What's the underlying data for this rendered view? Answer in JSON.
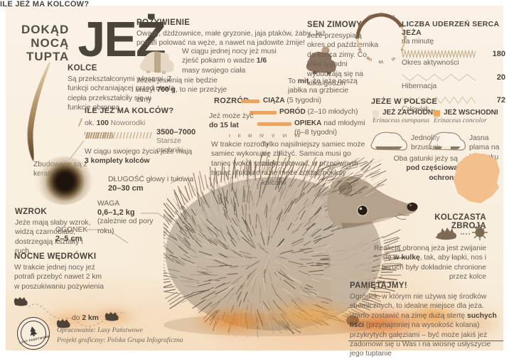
{
  "title": {
    "pre": [
      "DOKĄD",
      "NOCĄ",
      "TUPTA"
    ],
    "main": "JEŻ"
  },
  "kolce": {
    "header": "KOLCE",
    "body": "Są przekształconymi włosami. Z funkcji ochraniającej przed utratą ciepła przekształciły się w funkcję obronną",
    "note": "Zbudowane są z keratyny"
  },
  "pozywienie": {
    "header": "POŻYWIENIE",
    "body": "Owady, dżdżownice, małe gryzonie, jaja ptaków, żaby. Jeż potrafi polować na węże, a nawet na jadowite żmije!",
    "food": [
      "W ciągu jednej nocy jeż musi zjeść pokarm o wadze ",
      "1/6",
      " masy swojego ciała"
    ],
    "autumn": [
      "Jeżeli jesienią nie będzie ważył ",
      "700 g",
      ", to nie przeżyje zimy"
    ],
    "myth": [
      "To ",
      "mit",
      ", że jeże noszą jabłka na grzbiecie"
    ]
  },
  "sen": {
    "header": "SEN ZIMOWY",
    "body": "Jeże przesypiają okres od października do końca zimy. Co kilka tygodni wybudzają się na kilka godzin",
    "months": [
      "I",
      "II",
      "III",
      "IV",
      "V",
      "VI",
      "VII",
      "VIII",
      "IX",
      "X",
      "XI",
      "XII"
    ]
  },
  "heart": {
    "header": "LICZBA UDERZEŃ SERCA JEŻA",
    "sub": "na minutę",
    "rows": [
      {
        "value": "180",
        "label": "Okres aktywności"
      },
      {
        "value": "20",
        "label": "Hibernacja"
      },
      {
        "value": "72",
        "label": "Człowiek"
      }
    ]
  },
  "ile": {
    "header": "ILE JEŻ MA KOLCÓW?",
    "newborn": [
      "ok. ",
      "100",
      " Noworodki"
    ],
    "older_value": "3500–7000",
    "older_label": "Starsze osobniki",
    "life": [
      "W ciągu swojego życia jeże mają ",
      "3 komplety kolców"
    ]
  },
  "rozrod": {
    "header": "ROZRÓD",
    "rows": [
      {
        "name": "CIĄŻA",
        "rest": " (5 tygodni)"
      },
      {
        "name": "PORÓD",
        "rest": " (2–10 młodych)"
      },
      {
        "name": "OPIEKA",
        "rest": " nad młodymi (6–8 tygodni)"
      }
    ],
    "scale": [
      "I",
      "II",
      "III",
      "IV",
      "V",
      "VI",
      "VII"
    ],
    "life": [
      "Jeż może żyć",
      "do 15 lat"
    ],
    "dance": "W trakcie rozrodu samiec wykonuje taniec wokół samicy tupiąc i fukając",
    "male": "Tylko najsilniejszy samiec może się zbliżyć. Samica musi go zaakceptować, w przeciwnym razie może zostać pokłuty kolcami"
  },
  "polska": {
    "header": "JEŻE W POLSCE",
    "west": {
      "name": "JEŻ ZACHODNI",
      "latin": "Erinaceus europaeus",
      "note": "Jednolity brzuszek"
    },
    "east": {
      "name": "JEŻ WSCHODNI",
      "latin": "Erinaceus concolor",
      "note": "Jasna plama na brzuszku"
    },
    "protection": [
      "Oba gatunki jeży są ",
      "pod częściową ochroną"
    ]
  },
  "wzrok": {
    "header": "WZROK",
    "body": "Jeże mają słaby wzrok, widzą czarnobiało, dostrzegają kształty i ruch"
  },
  "wymiary": {
    "dlugosc_label": "DŁUGOŚĆ głowy i tułowia",
    "dlugosc_value": "20–30 cm",
    "waga_label": "WAGA",
    "waga_value": "0,6–1,2 kg",
    "waga_note": "(zależnie od pory roku)",
    "ogonek_label": "OGONEK",
    "ogonek_value": "2–5 cm"
  },
  "nocne": {
    "header": "NOCNE WĘDRÓWKI",
    "body": "W trakcie jednej nocy jeż potrafi przebyć nawet 2 km w poszukiwaniu pożywienia",
    "distance": [
      "do ",
      "2 km"
    ]
  },
  "zbroja": {
    "header1": "KOLCZASTA",
    "header2": "ZBROJA",
    "body": [
      "Reakcją obronną jeża jest zwijanie się ",
      "w kulkę",
      ", tak, aby łapki, nos i brzuch były dokładnie chronione przez kolce"
    ]
  },
  "pamietajmy": {
    "header": "PAMIĘTAJMY!",
    "body": [
      "Ogródek, w którym nie używa się środków chemicznych, to idealne miejsce dla jeża. Warto zostawić na zimę dużą stertę ",
      "suchych liści",
      " (przynajmniej na wysokość kolana) przykrytych gałęziami – być może jakiś jeż zadomowi się u Was i na wiosnę usłyszycie jego tuptanie"
    ]
  },
  "credits": {
    "logo": "LASY PAŃSTWOWE",
    "line1": "Opracowanie: Lasy Państwowe",
    "line2": "Projekt graficzny: Polska Grupa Infograficzna"
  },
  "colors": {
    "accent": "#eda55e",
    "heading": "#4b443b",
    "text": "#6e6257",
    "tan": "#c9b089",
    "arc_dark": "#7a5c42"
  }
}
